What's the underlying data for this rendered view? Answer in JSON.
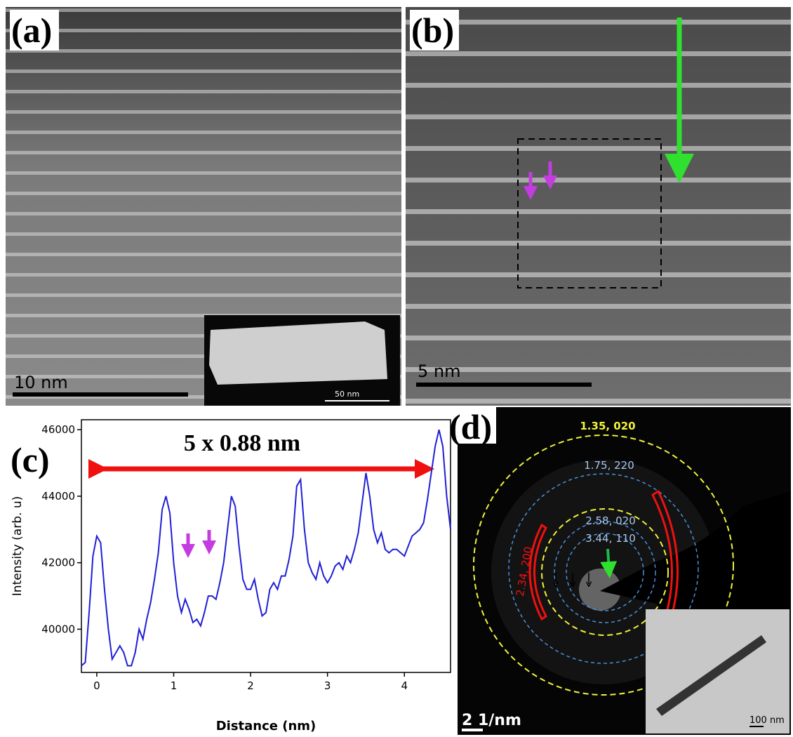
{
  "panels": {
    "a": {
      "label": "(a)",
      "scale_bar": "10 nm",
      "inset_scale_bar": "50 nm"
    },
    "b": {
      "label": "(b)",
      "scale_bar": "5 nm"
    },
    "c": {
      "label": "(c)"
    },
    "d": {
      "label": "(d)",
      "rings": [
        "1.35, 020",
        "1.75, 220",
        "2.58, 020",
        "3.44, 110"
      ],
      "side_label": "2.34, 200",
      "scale_bar": "2 1/nm",
      "inset_scale_bar": "100 nm"
    }
  },
  "chart_data": {
    "type": "line",
    "annotation": "5 x 0.88 nm",
    "x_label": "Distance (nm)",
    "y_label": "Intensity (arb. u)",
    "color": "#1f1fd6",
    "xlim": [
      -0.2,
      4.6
    ],
    "ylim": [
      38700,
      46300
    ],
    "xticks": [
      0,
      1,
      2,
      3,
      4
    ],
    "yticks": [
      40000,
      42000,
      44000,
      46000
    ],
    "x": [
      -0.2,
      -0.15,
      -0.1,
      -0.05,
      0,
      0.05,
      0.1,
      0.15,
      0.2,
      0.25,
      0.3,
      0.35,
      0.4,
      0.45,
      0.5,
      0.55,
      0.6,
      0.65,
      0.7,
      0.75,
      0.8,
      0.85,
      0.9,
      0.95,
      1.0,
      1.05,
      1.1,
      1.15,
      1.2,
      1.25,
      1.3,
      1.35,
      1.4,
      1.45,
      1.5,
      1.55,
      1.6,
      1.65,
      1.7,
      1.75,
      1.8,
      1.85,
      1.9,
      1.95,
      2.0,
      2.05,
      2.1,
      2.15,
      2.2,
      2.25,
      2.3,
      2.35,
      2.4,
      2.45,
      2.5,
      2.55,
      2.6,
      2.65,
      2.7,
      2.75,
      2.8,
      2.85,
      2.9,
      2.95,
      3.0,
      3.05,
      3.1,
      3.15,
      3.2,
      3.25,
      3.3,
      3.35,
      3.4,
      3.45,
      3.5,
      3.55,
      3.6,
      3.65,
      3.7,
      3.75,
      3.8,
      3.85,
      3.9,
      3.95,
      4.0,
      4.05,
      4.1,
      4.15,
      4.2,
      4.25,
      4.3,
      4.35,
      4.4,
      4.45,
      4.5,
      4.55,
      4.6
    ],
    "values": [
      38900,
      39000,
      40500,
      42200,
      42800,
      42600,
      41200,
      40000,
      39100,
      39300,
      39500,
      39300,
      38900,
      38900,
      39300,
      40000,
      39700,
      40300,
      40800,
      41500,
      42300,
      43600,
      44000,
      43500,
      42000,
      41000,
      40500,
      40900,
      40600,
      40200,
      40300,
      40100,
      40500,
      41000,
      41000,
      40900,
      41400,
      42000,
      43000,
      44000,
      43700,
      42500,
      41500,
      41200,
      41200,
      41500,
      40900,
      40400,
      40500,
      41200,
      41400,
      41200,
      41600,
      41600,
      42100,
      42800,
      44300,
      44500,
      43000,
      42000,
      41700,
      41500,
      42000,
      41600,
      41400,
      41600,
      41900,
      42000,
      41800,
      42200,
      42000,
      42400,
      42900,
      43800,
      44700,
      44000,
      43000,
      42600,
      42900,
      42400,
      42300,
      42400,
      42400,
      42300,
      42200,
      42500,
      42800,
      42900,
      43000,
      43200,
      43900,
      44700,
      45500,
      46000,
      45500,
      44000,
      43000
    ]
  }
}
